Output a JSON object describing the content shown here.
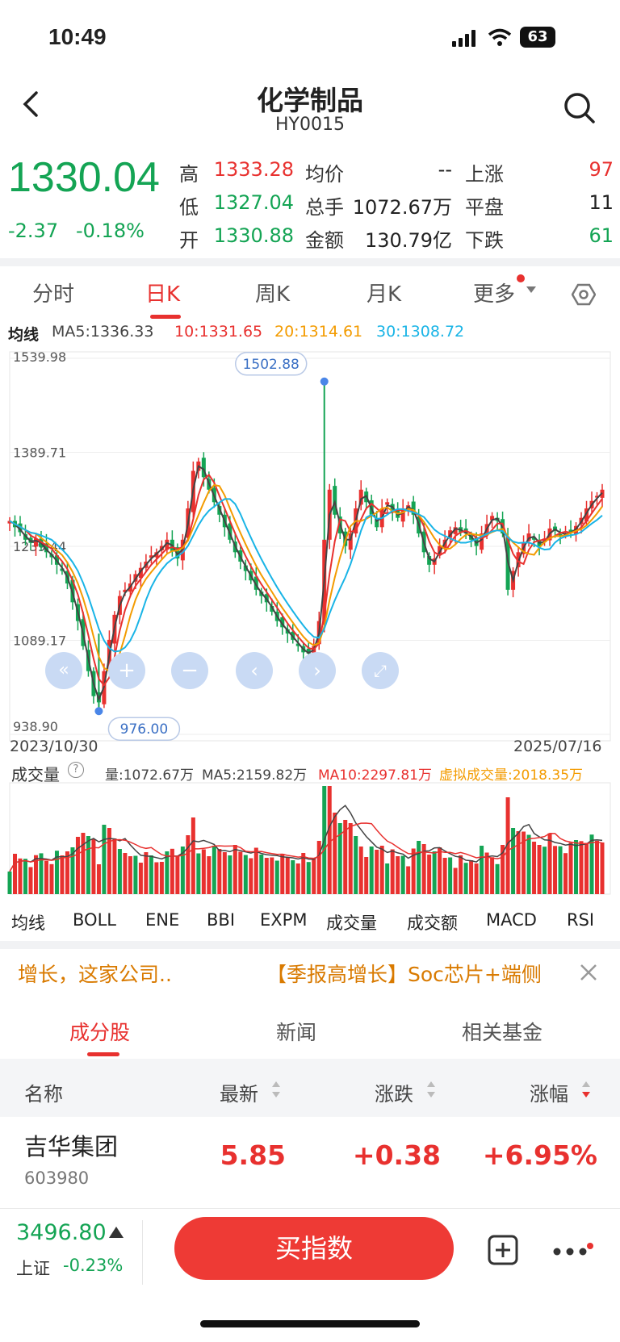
{
  "status_bar": {
    "time": "10:49",
    "battery": "63"
  },
  "header": {
    "title": "化学制品",
    "code": "HY0015"
  },
  "quote": {
    "price": "1330.04",
    "change": "-2.37",
    "change_pct": "-0.18%",
    "stats": {
      "high_label": "高",
      "high": "1333.28",
      "low_label": "低",
      "low": "1327.04",
      "open_label": "开",
      "open": "1330.88",
      "avg_label": "均价",
      "avg": "--",
      "vol_label": "总手",
      "vol": "1072.67万",
      "amount_label": "金额",
      "amount": "130.79亿",
      "up_label": "上涨",
      "up": "97",
      "flat_label": "平盘",
      "flat": "11",
      "down_label": "下跌",
      "down": "61"
    }
  },
  "kline_tabs": [
    "分时",
    "日K",
    "周K",
    "月K",
    "更多"
  ],
  "ma_line": {
    "label": "均线",
    "ma5": "MA5:1336.33",
    "ma10": "10:1331.65",
    "ma20": "20:1314.61",
    "ma30": "30:1308.72"
  },
  "colors": {
    "up": "#e8312f",
    "down": "#14a454",
    "ma5": "#444444",
    "ma10": "#e8312f",
    "ma20": "#f39b00",
    "ma30": "#19b4e6",
    "accent": "#ee3a35"
  },
  "chart_data": {
    "type": "candlestick",
    "y_ticks": [
      "1539.98",
      "1389.71",
      "1239.44",
      "1089.17",
      "938.90"
    ],
    "ylim": [
      938.9,
      1539.98
    ],
    "x_start": "2023/10/30",
    "x_end": "2025/07/16",
    "max_marker": "1502.88",
    "min_marker": "976.00",
    "close_trend": [
      1280,
      1270,
      1262,
      1250,
      1245,
      1252,
      1238,
      1230,
      1222,
      1210,
      1200,
      1180,
      1150,
      1120,
      1080,
      1040,
      1000,
      990,
      1040,
      1090,
      1130,
      1160,
      1170,
      1180,
      1195,
      1205,
      1215,
      1225,
      1230,
      1240,
      1250,
      1232,
      1220,
      1250,
      1300,
      1360,
      1375,
      1350,
      1330,
      1310,
      1290,
      1270,
      1250,
      1230,
      1215,
      1200,
      1185,
      1170,
      1160,
      1150,
      1135,
      1120,
      1110,
      1100,
      1090,
      1080,
      1070,
      1068,
      1080,
      1120,
      1250,
      1330,
      1290,
      1260,
      1240,
      1260,
      1300,
      1330,
      1310,
      1290,
      1270,
      1300,
      1310,
      1295,
      1285,
      1300,
      1305,
      1290,
      1260,
      1230,
      1210,
      1220,
      1240,
      1250,
      1265,
      1270,
      1262,
      1260,
      1250,
      1240,
      1260,
      1275,
      1288,
      1280,
      1260,
      1170,
      1200,
      1230,
      1245,
      1260,
      1250,
      1240,
      1252,
      1268,
      1265,
      1258,
      1260,
      1262,
      1272,
      1285,
      1300,
      1312,
      1320,
      1330
    ],
    "volume_label": "成交量",
    "volume_stats": {
      "vol": "量:1072.67万",
      "ma5": "MA5:2159.82万",
      "ma10": "MA10:2297.81万",
      "virtual": "虚拟成交量:2018.35万"
    }
  },
  "chart_controls": [
    "fast-back",
    "zoom-in",
    "zoom-out",
    "prev",
    "next",
    "fullscreen"
  ],
  "indicator_tabs": [
    "均线",
    "BOLL",
    "ENE",
    "BBI",
    "EXPM",
    "成交量",
    "成交额",
    "MACD",
    "RSI"
  ],
  "news": {
    "left": "增长，这家公司..",
    "right": "【季报高增长】Soc芯片+端侧"
  },
  "bottom_tabs": [
    "成分股",
    "新闻",
    "相关基金"
  ],
  "table": {
    "headers": [
      "名称",
      "最新",
      "涨跌",
      "涨幅"
    ],
    "rows": [
      {
        "name": "吉华集团",
        "code": "603980",
        "last": "5.85",
        "chg": "+0.38",
        "pct": "+6.95%"
      }
    ]
  },
  "bottom_bar": {
    "index_value": "3496.80",
    "index_name": "上证",
    "index_pct": "-0.23%",
    "buy_label": "买指数"
  }
}
